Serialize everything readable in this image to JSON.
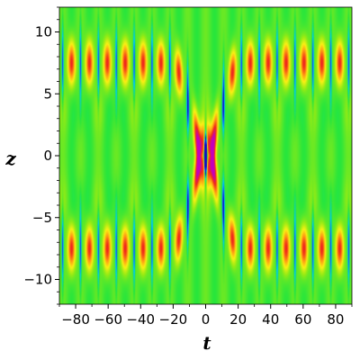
{
  "chart_data": {
    "type": "heatmap",
    "xlabel": "t",
    "ylabel": "z",
    "xlim": [
      -90,
      90
    ],
    "ylim": [
      -12,
      12
    ],
    "x_ticks": [
      -80,
      -60,
      -40,
      -20,
      0,
      20,
      40,
      60,
      80
    ],
    "x_tick_labels": [
      "−80",
      "−60",
      "−40",
      "−20",
      "0",
      "20",
      "40",
      "60",
      "80"
    ],
    "y_ticks": [
      -10,
      -5,
      0,
      5,
      10
    ],
    "y_tick_labels": [
      "−10",
      "−5",
      "0",
      "5",
      "10"
    ],
    "grid": false,
    "colormap": "rainbow (blue = low, green = background, red/magenta = high)",
    "colors": {
      "background": "#22dd22",
      "low": "#1020e0",
      "high": "#e02020",
      "peak": "#c000c0"
    },
    "features": {
      "periodic_wave_trains_z": [
        -7.5,
        7.5
      ],
      "wave_period_t": 11,
      "collision_center": [
        0,
        0
      ],
      "collision_peak_z": [
        -1,
        1
      ]
    }
  }
}
